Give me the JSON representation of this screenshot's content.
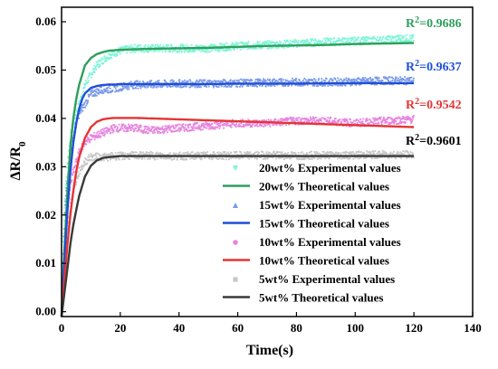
{
  "chart_data": {
    "type": "line",
    "xlabel": "Time(s)",
    "ylabel": "ΔR/R0",
    "xlim": [
      0,
      140
    ],
    "ylim": [
      -0.001,
      0.063
    ],
    "xticks": [
      0,
      20,
      40,
      60,
      80,
      100,
      120,
      140
    ],
    "yticks": [
      0.0,
      0.01,
      0.02,
      0.03,
      0.04,
      0.05,
      0.06
    ],
    "ytick_labels": [
      "0.00",
      "0.01",
      "0.02",
      "0.03",
      "0.04",
      "0.05",
      "0.06"
    ],
    "xtick_labels": [
      "0",
      "20",
      "40",
      "60",
      "80",
      "100",
      "120",
      "140"
    ],
    "grid": false,
    "legend_position": "bottom-right",
    "series": [
      {
        "group": "20wt%",
        "experimental_name": "20wt% Experimental values",
        "theoretical_name": "20wt% Theoretical values",
        "experimental_color": "#7ff5d8",
        "theoretical_color": "#2f9e5c",
        "r2_prefix": "R",
        "r2_sup": "2",
        "r2_value": "=0.9686",
        "r2_color": "#2f9e5c",
        "experimental": {
          "x": [
            0.5,
            1,
            2,
            3,
            4,
            5,
            6,
            7,
            8,
            9,
            10,
            12,
            14,
            16,
            18,
            20,
            25,
            30,
            40,
            50,
            60,
            70,
            80,
            90,
            100,
            110,
            115,
            120
          ],
          "y": [
            0.012,
            0.022,
            0.031,
            0.036,
            0.039,
            0.041,
            0.043,
            0.045,
            0.047,
            0.048,
            0.049,
            0.051,
            0.052,
            0.053,
            0.0535,
            0.054,
            0.0545,
            0.0545,
            0.0545,
            0.0545,
            0.055,
            0.0552,
            0.0555,
            0.0558,
            0.056,
            0.0562,
            0.0565,
            0.0565
          ]
        },
        "theoretical": {
          "x": [
            0,
            1,
            2,
            3,
            4,
            5,
            6,
            7,
            8,
            10,
            12,
            14,
            16,
            18,
            20,
            25,
            30,
            40,
            50,
            60,
            70,
            80,
            90,
            100,
            110,
            120
          ],
          "y": [
            -0.001,
            0.013,
            0.025,
            0.034,
            0.04,
            0.044,
            0.047,
            0.049,
            0.051,
            0.0525,
            0.0533,
            0.0537,
            0.054,
            0.0541,
            0.0542,
            0.0543,
            0.0544,
            0.0545,
            0.0546,
            0.0548,
            0.055,
            0.0551,
            0.0552,
            0.0554,
            0.0555,
            0.0556
          ]
        }
      },
      {
        "group": "15wt%",
        "experimental_name": "15wt% Experimental values",
        "theoretical_name": "15wt% Theoretical values",
        "experimental_color": "#7a9ae8",
        "theoretical_color": "#1f4fd6",
        "r2_prefix": "R",
        "r2_sup": "2",
        "r2_value": "=0.9637",
        "r2_color": "#1f4fd6",
        "experimental": {
          "x": [
            0.5,
            1,
            2,
            3,
            4,
            5,
            6,
            7,
            8,
            9,
            10,
            12,
            14,
            16,
            18,
            20,
            25,
            30,
            40,
            50,
            60,
            70,
            80,
            90,
            100,
            110,
            120
          ],
          "y": [
            0.01,
            0.02,
            0.028,
            0.033,
            0.036,
            0.039,
            0.041,
            0.042,
            0.043,
            0.044,
            0.045,
            0.0455,
            0.046,
            0.046,
            0.0462,
            0.0465,
            0.047,
            0.047,
            0.0472,
            0.0472,
            0.0473,
            0.0474,
            0.0475,
            0.0475,
            0.0476,
            0.0478,
            0.0478
          ]
        },
        "theoretical": {
          "x": [
            0,
            1,
            2,
            3,
            4,
            5,
            6,
            7,
            8,
            10,
            12,
            14,
            16,
            18,
            20,
            25,
            30,
            40,
            50,
            60,
            80,
            100,
            120
          ],
          "y": [
            -0.001,
            0.011,
            0.021,
            0.029,
            0.035,
            0.039,
            0.042,
            0.044,
            0.0452,
            0.0463,
            0.0467,
            0.0469,
            0.047,
            0.047,
            0.0471,
            0.0471,
            0.0471,
            0.0471,
            0.0471,
            0.0472,
            0.0472,
            0.0473,
            0.0473
          ]
        }
      },
      {
        "group": "10wt%",
        "experimental_name": "10wt% Experimental values",
        "theoretical_name": "10wt% Theoretical values",
        "experimental_color": "#e784e0",
        "theoretical_color": "#e43535",
        "r2_prefix": "R",
        "r2_sup": "2",
        "r2_value": "=0.9542",
        "r2_color": "#e43535",
        "experimental": {
          "x": [
            0.5,
            1,
            2,
            3,
            4,
            5,
            6,
            7,
            8,
            9,
            10,
            12,
            14,
            16,
            18,
            20,
            25,
            30,
            40,
            50,
            60,
            70,
            80,
            90,
            100,
            110,
            120
          ],
          "y": [
            0.006,
            0.014,
            0.021,
            0.026,
            0.029,
            0.031,
            0.033,
            0.034,
            0.035,
            0.0355,
            0.036,
            0.0365,
            0.037,
            0.0375,
            0.038,
            0.038,
            0.038,
            0.0375,
            0.038,
            0.0385,
            0.039,
            0.039,
            0.0395,
            0.0395,
            0.039,
            0.0395,
            0.0398
          ]
        },
        "theoretical": {
          "x": [
            0,
            1,
            2,
            3,
            4,
            5,
            6,
            7,
            8,
            10,
            12,
            14,
            16,
            18,
            20,
            25,
            30,
            40,
            50,
            60,
            70,
            80,
            90,
            100,
            110,
            120
          ],
          "y": [
            -0.001,
            0.007,
            0.014,
            0.02,
            0.025,
            0.029,
            0.032,
            0.034,
            0.036,
            0.0382,
            0.0393,
            0.0398,
            0.04,
            0.0401,
            0.0401,
            0.0401,
            0.04,
            0.0398,
            0.0396,
            0.0394,
            0.0392,
            0.039,
            0.0388,
            0.0386,
            0.0384,
            0.0382
          ]
        }
      },
      {
        "group": "5wt%",
        "experimental_name": "5wt% Experimental values",
        "theoretical_name": "5wt% Theoretical values",
        "experimental_color": "#c7c7c7",
        "theoretical_color": "#3a3a3a",
        "r2_prefix": "R",
        "r2_sup": "2",
        "r2_value": "=0.9601",
        "r2_color": "#000000",
        "experimental": {
          "x": [
            0.5,
            1,
            2,
            3,
            4,
            5,
            6,
            7,
            8,
            9,
            10,
            12,
            14,
            16,
            18,
            20,
            25,
            30,
            40,
            50,
            60,
            70,
            80,
            90,
            100,
            110,
            120
          ],
          "y": [
            0.004,
            0.01,
            0.017,
            0.022,
            0.025,
            0.027,
            0.029,
            0.03,
            0.031,
            0.0315,
            0.032,
            0.032,
            0.032,
            0.032,
            0.0322,
            0.0322,
            0.0323,
            0.0323,
            0.0322,
            0.0323,
            0.0323,
            0.0324,
            0.0323,
            0.0324,
            0.0324,
            0.0325,
            0.0325
          ]
        },
        "theoretical": {
          "x": [
            0,
            1,
            2,
            3,
            4,
            5,
            6,
            7,
            8,
            10,
            12,
            14,
            16,
            18,
            20,
            25,
            30,
            40,
            60,
            80,
            100,
            120
          ],
          "y": [
            -0.001,
            0.004,
            0.009,
            0.014,
            0.018,
            0.021,
            0.024,
            0.026,
            0.028,
            0.0302,
            0.0313,
            0.0318,
            0.032,
            0.0321,
            0.0322,
            0.0322,
            0.0322,
            0.0322,
            0.0322,
            0.0322,
            0.0322,
            0.0322
          ]
        }
      }
    ]
  }
}
